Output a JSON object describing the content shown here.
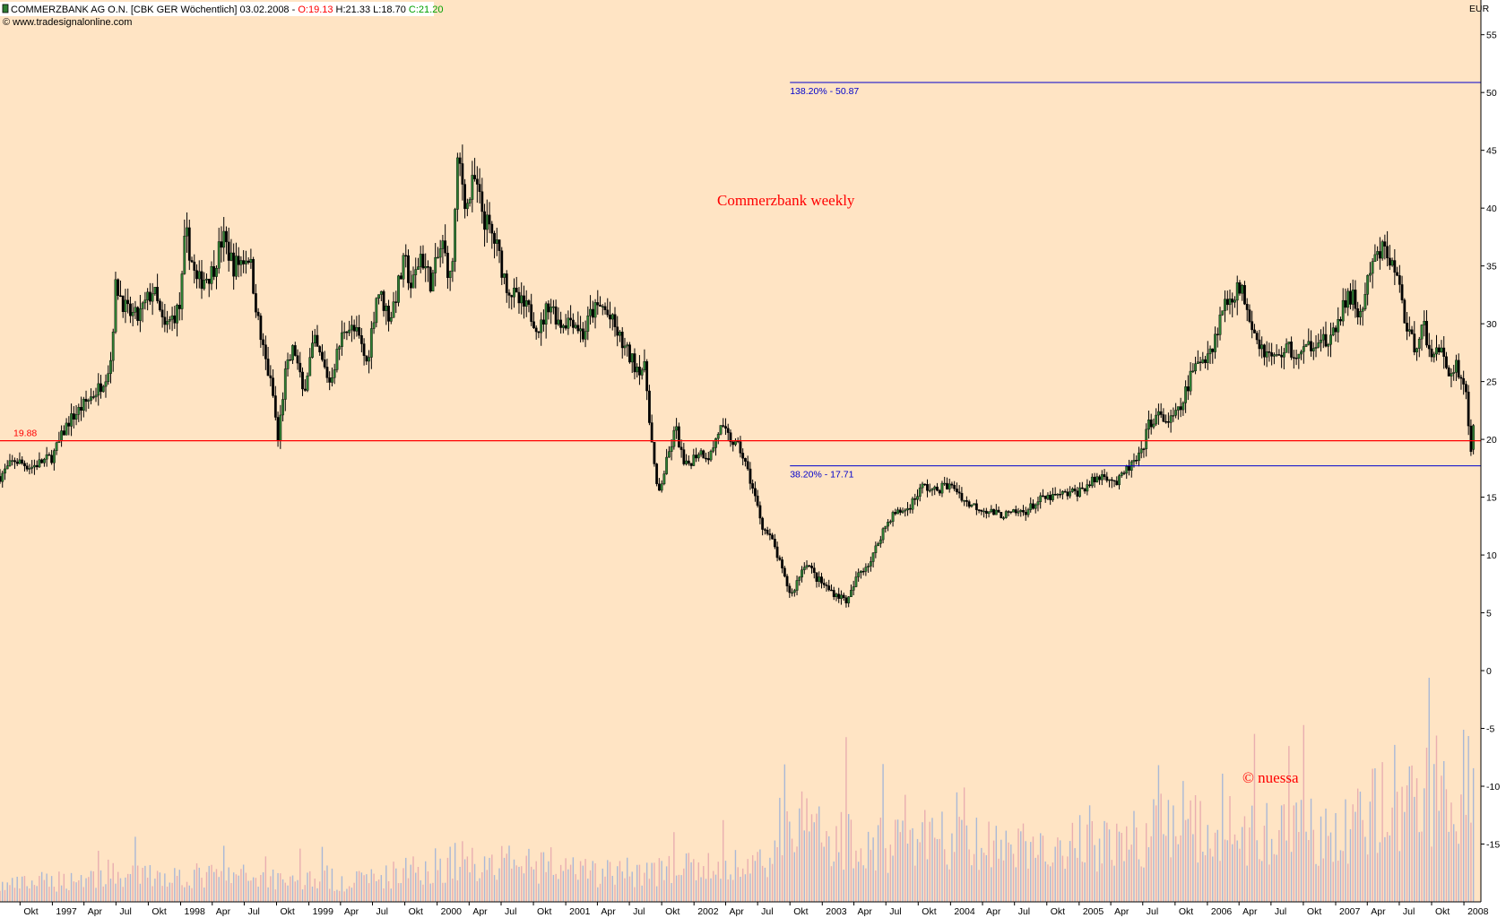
{
  "header": {
    "symbol": "COMMERZBANK AG O.N. [CBK GER  Wöchentlich] 03.02.2008 -",
    "open": "O:19.13",
    "high": "H:21.33",
    "low": "L:18.70",
    "close": "C:21.20",
    "source": "© www.tradesignalonline.com"
  },
  "colors": {
    "background": "#ffe4c4",
    "open": "#ff0000",
    "close": "#00a000",
    "bull": "#2e7d32",
    "bear": "#000000",
    "support_line": "#ff0000",
    "fib_line": "#0000cc",
    "volume_bar": "#a9b8d6",
    "volume_bar_alt": "#e9aeb0"
  },
  "annotations": {
    "title": "Commerzbank weekly",
    "copyright": "© nuessa"
  },
  "chart_data": {
    "type": "candlestick",
    "period": "weekly",
    "currency": "EUR",
    "y_axis": {
      "label": "EUR",
      "ylim": [
        -20,
        58
      ],
      "ticks": [
        "55",
        "50",
        "45",
        "40",
        "35",
        "30",
        "25",
        "20",
        "15",
        "10",
        "5",
        "0",
        "-5",
        "-10",
        "-15"
      ]
    },
    "x_axis": {
      "start": "1996-08-05",
      "end": "2008-02-03",
      "ticks": [
        {
          "date": "1996-10-01",
          "label": "Okt"
        },
        {
          "date": "1997-01-01",
          "label": "1997"
        },
        {
          "date": "1997-04-01",
          "label": "Apr"
        },
        {
          "date": "1997-07-01",
          "label": "Jul"
        },
        {
          "date": "1997-10-01",
          "label": "Okt"
        },
        {
          "date": "1998-01-01",
          "label": "1998"
        },
        {
          "date": "1998-04-01",
          "label": "Apr"
        },
        {
          "date": "1998-07-01",
          "label": "Jul"
        },
        {
          "date": "1998-10-01",
          "label": "Okt"
        },
        {
          "date": "1999-01-01",
          "label": "1999"
        },
        {
          "date": "1999-04-01",
          "label": "Apr"
        },
        {
          "date": "1999-07-01",
          "label": "Jul"
        },
        {
          "date": "1999-10-01",
          "label": "Okt"
        },
        {
          "date": "2000-01-01",
          "label": "2000"
        },
        {
          "date": "2000-04-01",
          "label": "Apr"
        },
        {
          "date": "2000-07-01",
          "label": "Jul"
        },
        {
          "date": "2000-10-01",
          "label": "Okt"
        },
        {
          "date": "2001-01-01",
          "label": "2001"
        },
        {
          "date": "2001-04-01",
          "label": "Apr"
        },
        {
          "date": "2001-07-01",
          "label": "Jul"
        },
        {
          "date": "2001-10-01",
          "label": "Okt"
        },
        {
          "date": "2002-01-01",
          "label": "2002"
        },
        {
          "date": "2002-04-01",
          "label": "Apr"
        },
        {
          "date": "2002-07-01",
          "label": "Jul"
        },
        {
          "date": "2002-10-01",
          "label": "Okt"
        },
        {
          "date": "2003-01-01",
          "label": "2003"
        },
        {
          "date": "2003-04-01",
          "label": "Apr"
        },
        {
          "date": "2003-07-01",
          "label": "Jul"
        },
        {
          "date": "2003-10-01",
          "label": "Okt"
        },
        {
          "date": "2004-01-01",
          "label": "2004"
        },
        {
          "date": "2004-04-01",
          "label": "Apr"
        },
        {
          "date": "2004-07-01",
          "label": "Jul"
        },
        {
          "date": "2004-10-01",
          "label": "Okt"
        },
        {
          "date": "2005-01-01",
          "label": "2005"
        },
        {
          "date": "2005-04-01",
          "label": "Apr"
        },
        {
          "date": "2005-07-01",
          "label": "Jul"
        },
        {
          "date": "2005-10-01",
          "label": "Okt"
        },
        {
          "date": "2006-01-01",
          "label": "2006"
        },
        {
          "date": "2006-04-01",
          "label": "Apr"
        },
        {
          "date": "2006-07-01",
          "label": "Jul"
        },
        {
          "date": "2006-10-01",
          "label": "Okt"
        },
        {
          "date": "2007-01-01",
          "label": "2007"
        },
        {
          "date": "2007-04-01",
          "label": "Apr"
        },
        {
          "date": "2007-07-01",
          "label": "Jul"
        },
        {
          "date": "2007-10-01",
          "label": "Okt"
        },
        {
          "date": "2008-01-01",
          "label": "2008"
        }
      ]
    },
    "price_path": [
      [
        "1996-08-05",
        16.8
      ],
      [
        "1996-09-15",
        18.2
      ],
      [
        "1996-11-01",
        17.6
      ],
      [
        "1997-01-01",
        18.5
      ],
      [
        "1997-02-15",
        21.5
      ],
      [
        "1997-04-01",
        23.0
      ],
      [
        "1997-05-15",
        24.5
      ],
      [
        "1997-06-15",
        26.5
      ],
      [
        "1997-07-01",
        33.5
      ],
      [
        "1997-08-01",
        31.0
      ],
      [
        "1997-09-01",
        30.5
      ],
      [
        "1997-10-15",
        33.0
      ],
      [
        "1997-11-15",
        29.5
      ],
      [
        "1997-12-31",
        31.5
      ],
      [
        "1998-01-15",
        38.0
      ],
      [
        "1998-02-15",
        33.5
      ],
      [
        "1998-04-01",
        34.5
      ],
      [
        "1998-05-01",
        37.5
      ],
      [
        "1998-06-01",
        35.0
      ],
      [
        "1998-07-15",
        36.0
      ],
      [
        "1998-08-15",
        29.0
      ],
      [
        "1998-09-20",
        24.0
      ],
      [
        "1998-10-05",
        19.9
      ],
      [
        "1998-10-25",
        25.5
      ],
      [
        "1998-11-20",
        28.0
      ],
      [
        "1998-12-15",
        24.0
      ],
      [
        "1999-01-15",
        28.5
      ],
      [
        "1999-03-01",
        25.0
      ],
      [
        "1999-04-15",
        30.0
      ],
      [
        "1999-05-20",
        29.0
      ],
      [
        "1999-06-15",
        26.5
      ],
      [
        "1999-07-15",
        33.0
      ],
      [
        "1999-08-20",
        30.5
      ],
      [
        "1999-10-01",
        35.5
      ],
      [
        "1999-10-20",
        33.0
      ],
      [
        "1999-11-15",
        36.0
      ],
      [
        "1999-12-15",
        33.5
      ],
      [
        "2000-01-15",
        37.0
      ],
      [
        "2000-02-10",
        33.5
      ],
      [
        "2000-03-01",
        44.5
      ],
      [
        "2000-03-25",
        40.0
      ],
      [
        "2000-04-15",
        42.5
      ],
      [
        "2000-05-15",
        39.0
      ],
      [
        "2000-06-15",
        37.0
      ],
      [
        "2000-07-15",
        33.5
      ],
      [
        "2000-08-15",
        32.0
      ],
      [
        "2000-09-20",
        31.0
      ],
      [
        "2000-10-20",
        29.5
      ],
      [
        "2000-11-15",
        32.0
      ],
      [
        "2000-12-15",
        30.0
      ],
      [
        "2001-01-20",
        30.5
      ],
      [
        "2001-02-20",
        29.0
      ],
      [
        "2001-03-15",
        31.0
      ],
      [
        "2001-04-15",
        31.5
      ],
      [
        "2001-05-15",
        30.0
      ],
      [
        "2001-06-15",
        28.0
      ],
      [
        "2001-07-15",
        26.5
      ],
      [
        "2001-08-15",
        26.0
      ],
      [
        "2001-09-05",
        19.0
      ],
      [
        "2001-09-20",
        15.0
      ],
      [
        "2001-10-15",
        18.0
      ],
      [
        "2001-11-10",
        21.0
      ],
      [
        "2001-12-05",
        17.5
      ],
      [
        "2002-01-15",
        19.0
      ],
      [
        "2002-02-15",
        18.5
      ],
      [
        "2002-03-15",
        21.0
      ],
      [
        "2002-04-15",
        20.0
      ],
      [
        "2002-05-15",
        19.0
      ],
      [
        "2002-06-15",
        16.0
      ],
      [
        "2002-07-15",
        12.5
      ],
      [
        "2002-08-15",
        11.0
      ],
      [
        "2002-09-15",
        8.0
      ],
      [
        "2002-10-05",
        6.5
      ],
      [
        "2002-10-25",
        8.0
      ],
      [
        "2002-11-15",
        9.5
      ],
      [
        "2002-12-15",
        8.0
      ],
      [
        "2003-01-20",
        7.0
      ],
      [
        "2003-03-15",
        6.0
      ],
      [
        "2003-04-15",
        8.5
      ],
      [
        "2003-05-20",
        9.5
      ],
      [
        "2003-06-20",
        12.0
      ],
      [
        "2003-07-20",
        13.5
      ],
      [
        "2003-09-01",
        14.0
      ],
      [
        "2003-10-15",
        16.0
      ],
      [
        "2003-11-15",
        15.5
      ],
      [
        "2003-12-15",
        16.0
      ],
      [
        "2004-01-15",
        15.8
      ],
      [
        "2004-02-15",
        14.5
      ],
      [
        "2004-04-01",
        14.0
      ],
      [
        "2004-05-15",
        13.5
      ],
      [
        "2004-06-15",
        13.5
      ],
      [
        "2004-08-01",
        13.8
      ],
      [
        "2004-09-15",
        14.8
      ],
      [
        "2004-11-15",
        15.2
      ],
      [
        "2004-12-31",
        15.5
      ],
      [
        "2005-02-15",
        16.5
      ],
      [
        "2005-03-15",
        17.0
      ],
      [
        "2005-04-20",
        16.2
      ],
      [
        "2005-05-20",
        17.5
      ],
      [
        "2005-06-25",
        18.5
      ],
      [
        "2005-07-20",
        21.5
      ],
      [
        "2005-08-15",
        22.0
      ],
      [
        "2005-09-15",
        21.5
      ],
      [
        "2005-10-15",
        22.5
      ],
      [
        "2005-11-15",
        25.5
      ],
      [
        "2005-12-15",
        27.0
      ],
      [
        "2006-01-15",
        28.0
      ],
      [
        "2006-02-15",
        31.5
      ],
      [
        "2006-03-25",
        33.0
      ],
      [
        "2006-04-15",
        32.5
      ],
      [
        "2006-05-20",
        29.0
      ],
      [
        "2006-06-15",
        27.5
      ],
      [
        "2006-07-15",
        27.0
      ],
      [
        "2006-08-15",
        28.0
      ],
      [
        "2006-09-15",
        27.0
      ],
      [
        "2006-10-15",
        28.0
      ],
      [
        "2006-11-15",
        29.0
      ],
      [
        "2006-12-15",
        28.0
      ],
      [
        "2007-01-15",
        31.0
      ],
      [
        "2007-02-15",
        32.5
      ],
      [
        "2007-03-10",
        30.5
      ],
      [
        "2007-04-15",
        35.0
      ],
      [
        "2007-05-15",
        36.5
      ],
      [
        "2007-06-15",
        35.0
      ],
      [
        "2007-07-10",
        32.0
      ],
      [
        "2007-07-25",
        29.0
      ],
      [
        "2007-08-15",
        28.0
      ],
      [
        "2007-09-05",
        30.5
      ],
      [
        "2007-09-25",
        27.0
      ],
      [
        "2007-10-20",
        28.5
      ],
      [
        "2007-11-15",
        25.5
      ],
      [
        "2007-12-10",
        26.5
      ],
      [
        "2008-01-05",
        24.5
      ],
      [
        "2008-01-20",
        19.0
      ],
      [
        "2008-02-03",
        21.2
      ]
    ],
    "series": [
      {
        "name": "19.88",
        "type": "horizontal-line",
        "value": 19.88
      },
      {
        "name": "138.20% - 50.87",
        "type": "horizontal-line",
        "value": 50.87,
        "from": "2002-10-01"
      },
      {
        "name": "38.20% - 17.71",
        "type": "horizontal-line",
        "value": 17.71,
        "from": "2002-10-01"
      }
    ],
    "volume_note": "relative weekly volume drawn as bars in the lower band of the chart (below the 0 level)",
    "volume_profile": [
      [
        "1996-08-05",
        0.06
      ],
      [
        "1997-06-01",
        0.1
      ],
      [
        "1998-06-01",
        0.1
      ],
      [
        "1999-06-01",
        0.08
      ],
      [
        "2000-03-01",
        0.16
      ],
      [
        "2001-03-01",
        0.11
      ],
      [
        "2001-09-20",
        0.12
      ],
      [
        "2002-07-01",
        0.14
      ],
      [
        "2002-10-15",
        0.3
      ],
      [
        "2003-06-01",
        0.22
      ],
      [
        "2003-10-15",
        0.25
      ],
      [
        "2004-06-01",
        0.2
      ],
      [
        "2005-06-01",
        0.24
      ],
      [
        "2005-10-15",
        0.3
      ],
      [
        "2006-06-01",
        0.26
      ],
      [
        "2007-01-01",
        0.28
      ],
      [
        "2007-08-01",
        0.4
      ],
      [
        "2008-02-03",
        0.48
      ]
    ],
    "grid": false,
    "legend": "none"
  }
}
